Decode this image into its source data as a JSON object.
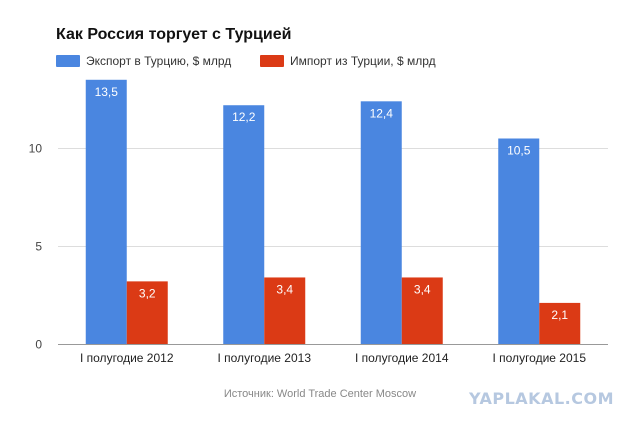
{
  "chart_data": {
    "type": "bar",
    "title": "Как Россия торгует с Турцией",
    "categories": [
      "I полугодие 2012",
      "I полугодие 2013",
      "I полугодие 2014",
      "I полугодие 2015"
    ],
    "series": [
      {
        "name": "Экспорт в Турцию, $ млрд",
        "values": [
          13.5,
          12.2,
          12.4,
          10.5
        ],
        "labels": [
          "13,5",
          "12,2",
          "12,4",
          "10,5"
        ],
        "color": "#4a86e0"
      },
      {
        "name": "Импорт из Турции, $ млрд",
        "values": [
          3.2,
          3.4,
          3.4,
          2.1
        ],
        "labels": [
          "3,2",
          "3,4",
          "3,4",
          "2,1"
        ],
        "color": "#db3a15"
      }
    ],
    "yticks": [
      0,
      5,
      10
    ],
    "ylim": [
      0,
      14
    ],
    "grid": true,
    "legend": "top-left"
  },
  "source": "Источник: World Trade Center Moscow",
  "watermark": "YAPLAKAL.COM"
}
